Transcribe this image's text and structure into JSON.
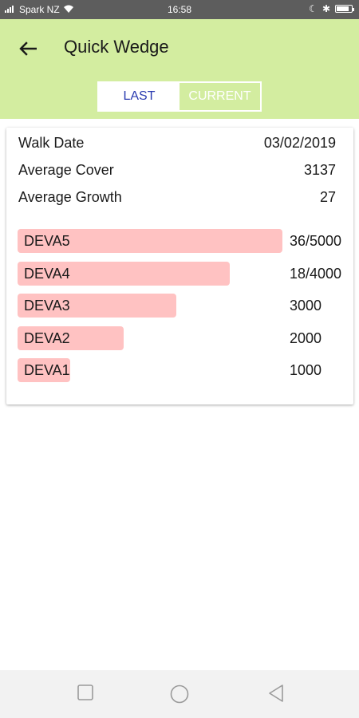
{
  "status_bar": {
    "carrier": "Spark NZ",
    "time": "16:58"
  },
  "header": {
    "title": "Quick Wedge"
  },
  "tabs": [
    {
      "label": "LAST",
      "active": true
    },
    {
      "label": "CURRENT",
      "active": false
    }
  ],
  "summary": {
    "walk_date_label": "Walk Date",
    "walk_date_value": "03/02/2019",
    "average_cover_label": "Average Cover",
    "average_cover_value": "3137",
    "average_growth_label": "Average Growth",
    "average_growth_value": "27"
  },
  "chart_data": {
    "type": "bar",
    "orientation": "horizontal",
    "categories": [
      "DEVA5",
      "DEVA4",
      "DEVA3",
      "DEVA2",
      "DEVA1"
    ],
    "values": [
      5000,
      4000,
      3000,
      2000,
      1000
    ],
    "value_labels": [
      "36/5000",
      "18/4000",
      "3000",
      "2000",
      "1000"
    ],
    "xlim": [
      0,
      5000
    ],
    "bar_color": "#ffc2c2"
  },
  "colors": {
    "app_bar": "#d3eda0",
    "active_tab_text": "#2a3bb0",
    "status_bar": "#5d5d5d"
  },
  "icons": {
    "back": "arrow-left-icon",
    "recent": "square-icon",
    "home": "circle-icon",
    "back_nav": "triangle-left-icon"
  }
}
